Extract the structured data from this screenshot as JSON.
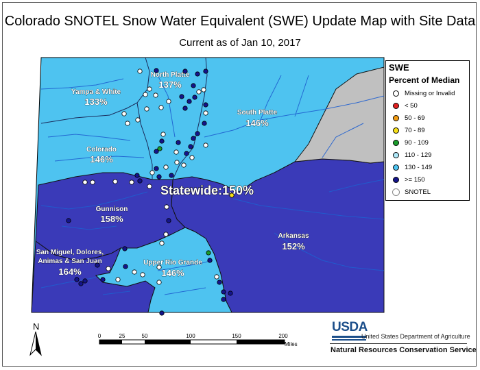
{
  "title": "Colorado SNOTEL Snow Water Equivalent (SWE) Update Map with Site Data",
  "subtitle": "Current as of Jan 10, 2017",
  "colors": {
    "missing": "#ffffff",
    "lt50": "#e02020",
    "c50_69": "#f39c12",
    "c70_89": "#f7e018",
    "c90_109": "#1a9c2a",
    "c110_129": "#aee8f8",
    "c130_149": "#4ec3f0",
    "gte150": "#2a3a9e",
    "basin_light": "#4ec3f0",
    "basin_dark": "#3a3ab8",
    "nodata": "#c0c0c0",
    "river": "#1e5fd0",
    "site_dark": "#14148a"
  },
  "basins": [
    {
      "id": "north-platte",
      "name": "North Platte",
      "pct": "137%"
    },
    {
      "id": "yampa-white",
      "name": "Yampa & White",
      "pct": "133%"
    },
    {
      "id": "south-platte",
      "name": "South Platte",
      "pct": "146%"
    },
    {
      "id": "colorado",
      "name": "Colorado",
      "pct": "146%"
    },
    {
      "id": "gunnison",
      "name": "Gunnison",
      "pct": "158%"
    },
    {
      "id": "arkansas",
      "name": "Arkansas",
      "pct": "152%"
    },
    {
      "id": "upper-rio-grande",
      "name": "Upper Rio Grande",
      "pct": "146%"
    },
    {
      "id": "san-miguel",
      "name": "San Miguel, Dolores,\nAnimas & San Juan",
      "name_line1": "San Miguel, Dolores,",
      "name_line2": "Animas & San Juan",
      "pct": "164%"
    }
  ],
  "statewide": "Statewide:150%",
  "legend": {
    "title": "SWE",
    "subtitle": "Percent of Median",
    "items": [
      {
        "label": "Missing or Invalid",
        "color": "#ffffff"
      },
      {
        "label": "< 50",
        "color": "#e02020"
      },
      {
        "label": "50 - 69",
        "color": "#f39c12"
      },
      {
        "label": "70 - 89",
        "color": "#f7e018"
      },
      {
        "label": "90 - 109",
        "color": "#1a9c2a"
      },
      {
        "label": "110 - 129",
        "color": "#aee8f8"
      },
      {
        "label": "130 - 149",
        "color": "#4ec3f0"
      },
      {
        "label": ">= 150",
        "color": "#14148a"
      },
      {
        "label": "SNOTEL",
        "color": "#ffffff"
      }
    ]
  },
  "scalebar": {
    "ticks": [
      "0",
      "25",
      "50",
      "100",
      "150",
      "200"
    ],
    "unit": "Miles"
  },
  "north_label": "N",
  "usda": {
    "logo_text": "USDA",
    "agency": "United States Department of Agriculture",
    "service": "Natural Resources Conservation Service"
  }
}
